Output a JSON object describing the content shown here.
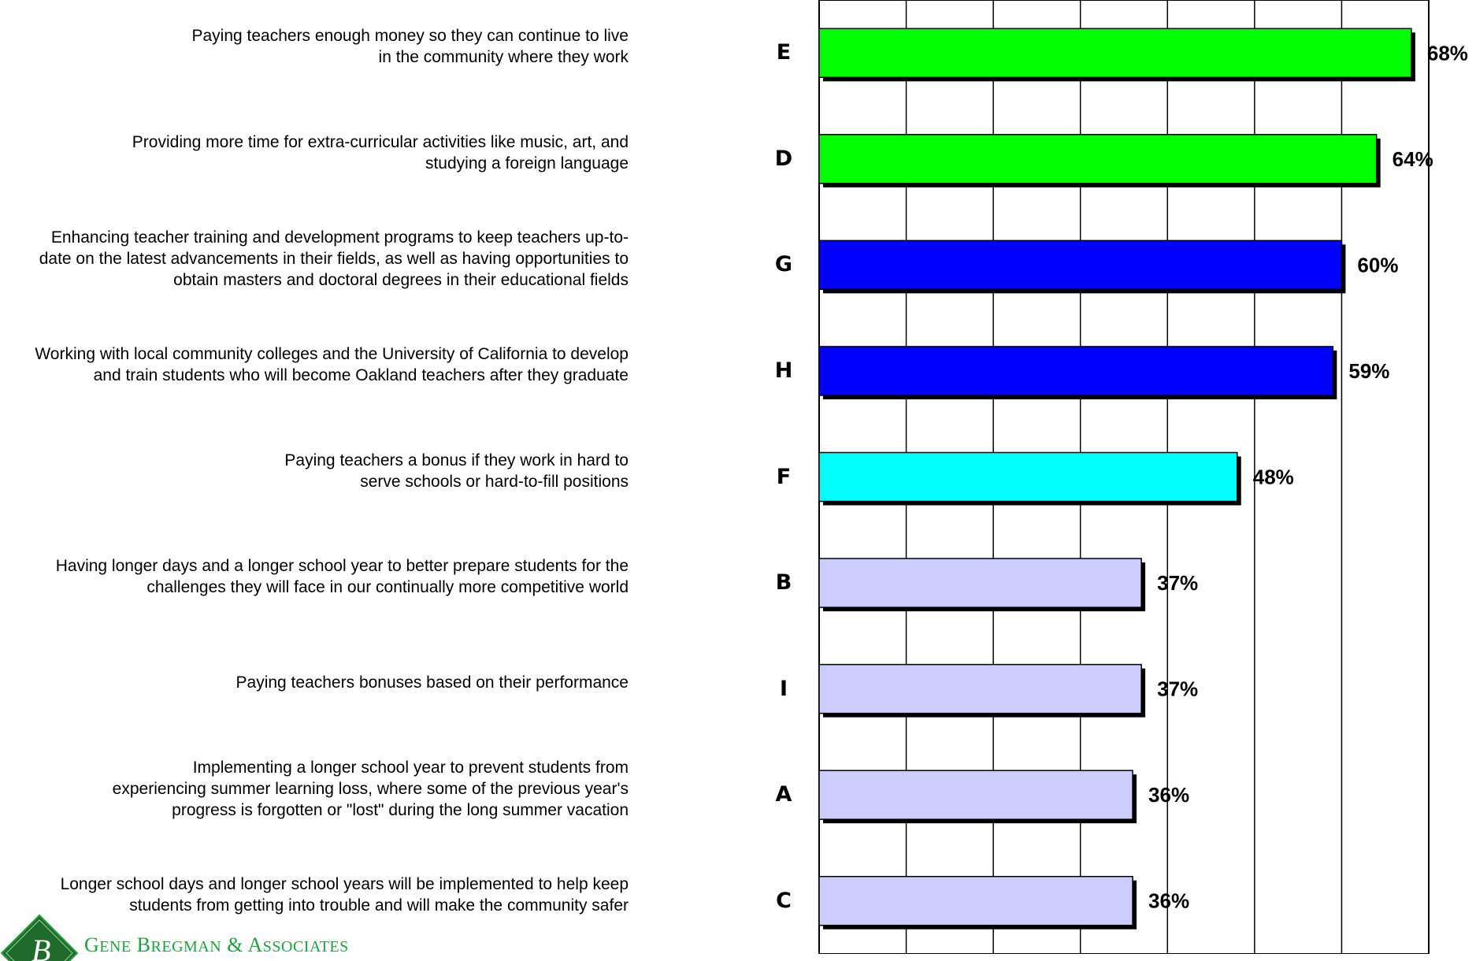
{
  "chart_data": {
    "type": "bar",
    "orientation": "horizontal",
    "xlim": [
      0,
      70
    ],
    "grid": true,
    "rows": [
      {
        "letter": "E",
        "label": [
          "Paying teachers enough money so they can continue to live",
          "in the community where they work"
        ],
        "value": 68,
        "value_label": "68%",
        "color": "#00ff00"
      },
      {
        "letter": "D",
        "label": [
          "Providing more time for extra-curricular activities like music, art, and",
          "studying a foreign language"
        ],
        "value": 64,
        "value_label": "64%",
        "color": "#00ff00"
      },
      {
        "letter": "G",
        "label": [
          "Enhancing teacher training and development programs to keep teachers up-to-",
          "date on the latest advancements in their fields, as well as having opportunities to",
          "obtain masters and doctoral degrees in their educational fields"
        ],
        "value": 60,
        "value_label": "60%",
        "color": "#0000ff"
      },
      {
        "letter": "H",
        "label": [
          "Working with local community colleges and the University of California to develop",
          "and train students who will become Oakland teachers after they graduate"
        ],
        "value": 59,
        "value_label": "59%",
        "color": "#0000ff"
      },
      {
        "letter": "F",
        "label": [
          "Paying teachers a bonus if they work in hard to",
          "serve schools or hard-to-fill positions"
        ],
        "value": 48,
        "value_label": "48%",
        "color": "#00ffff"
      },
      {
        "letter": "B",
        "label": [
          "Having longer days and a longer school year to better prepare students for the",
          "challenges they will face in our continually more competitive world"
        ],
        "value": 37,
        "value_label": "37%",
        "color": "#ccccff"
      },
      {
        "letter": "I",
        "label": [
          "Paying teachers bonuses based on their performance"
        ],
        "value": 37,
        "value_label": "37%",
        "color": "#ccccff"
      },
      {
        "letter": "A",
        "label": [
          "Implementing a longer school year to prevent students from",
          "experiencing summer learning loss, where some of the previous year's",
          "progress is forgotten or \"lost\" during the long summer vacation"
        ],
        "value": 36,
        "value_label": "36%",
        "color": "#ccccff"
      },
      {
        "letter": "C",
        "label": [
          "Longer school days and longer school years will be implemented to help keep",
          "students from getting into trouble and will make the community safer"
        ],
        "value": 36,
        "value_label": "36%",
        "color": "#ccccff"
      }
    ]
  },
  "logo": {
    "text": "GENE BREGMAN & ASSOCIATES",
    "color": "#20a040"
  }
}
